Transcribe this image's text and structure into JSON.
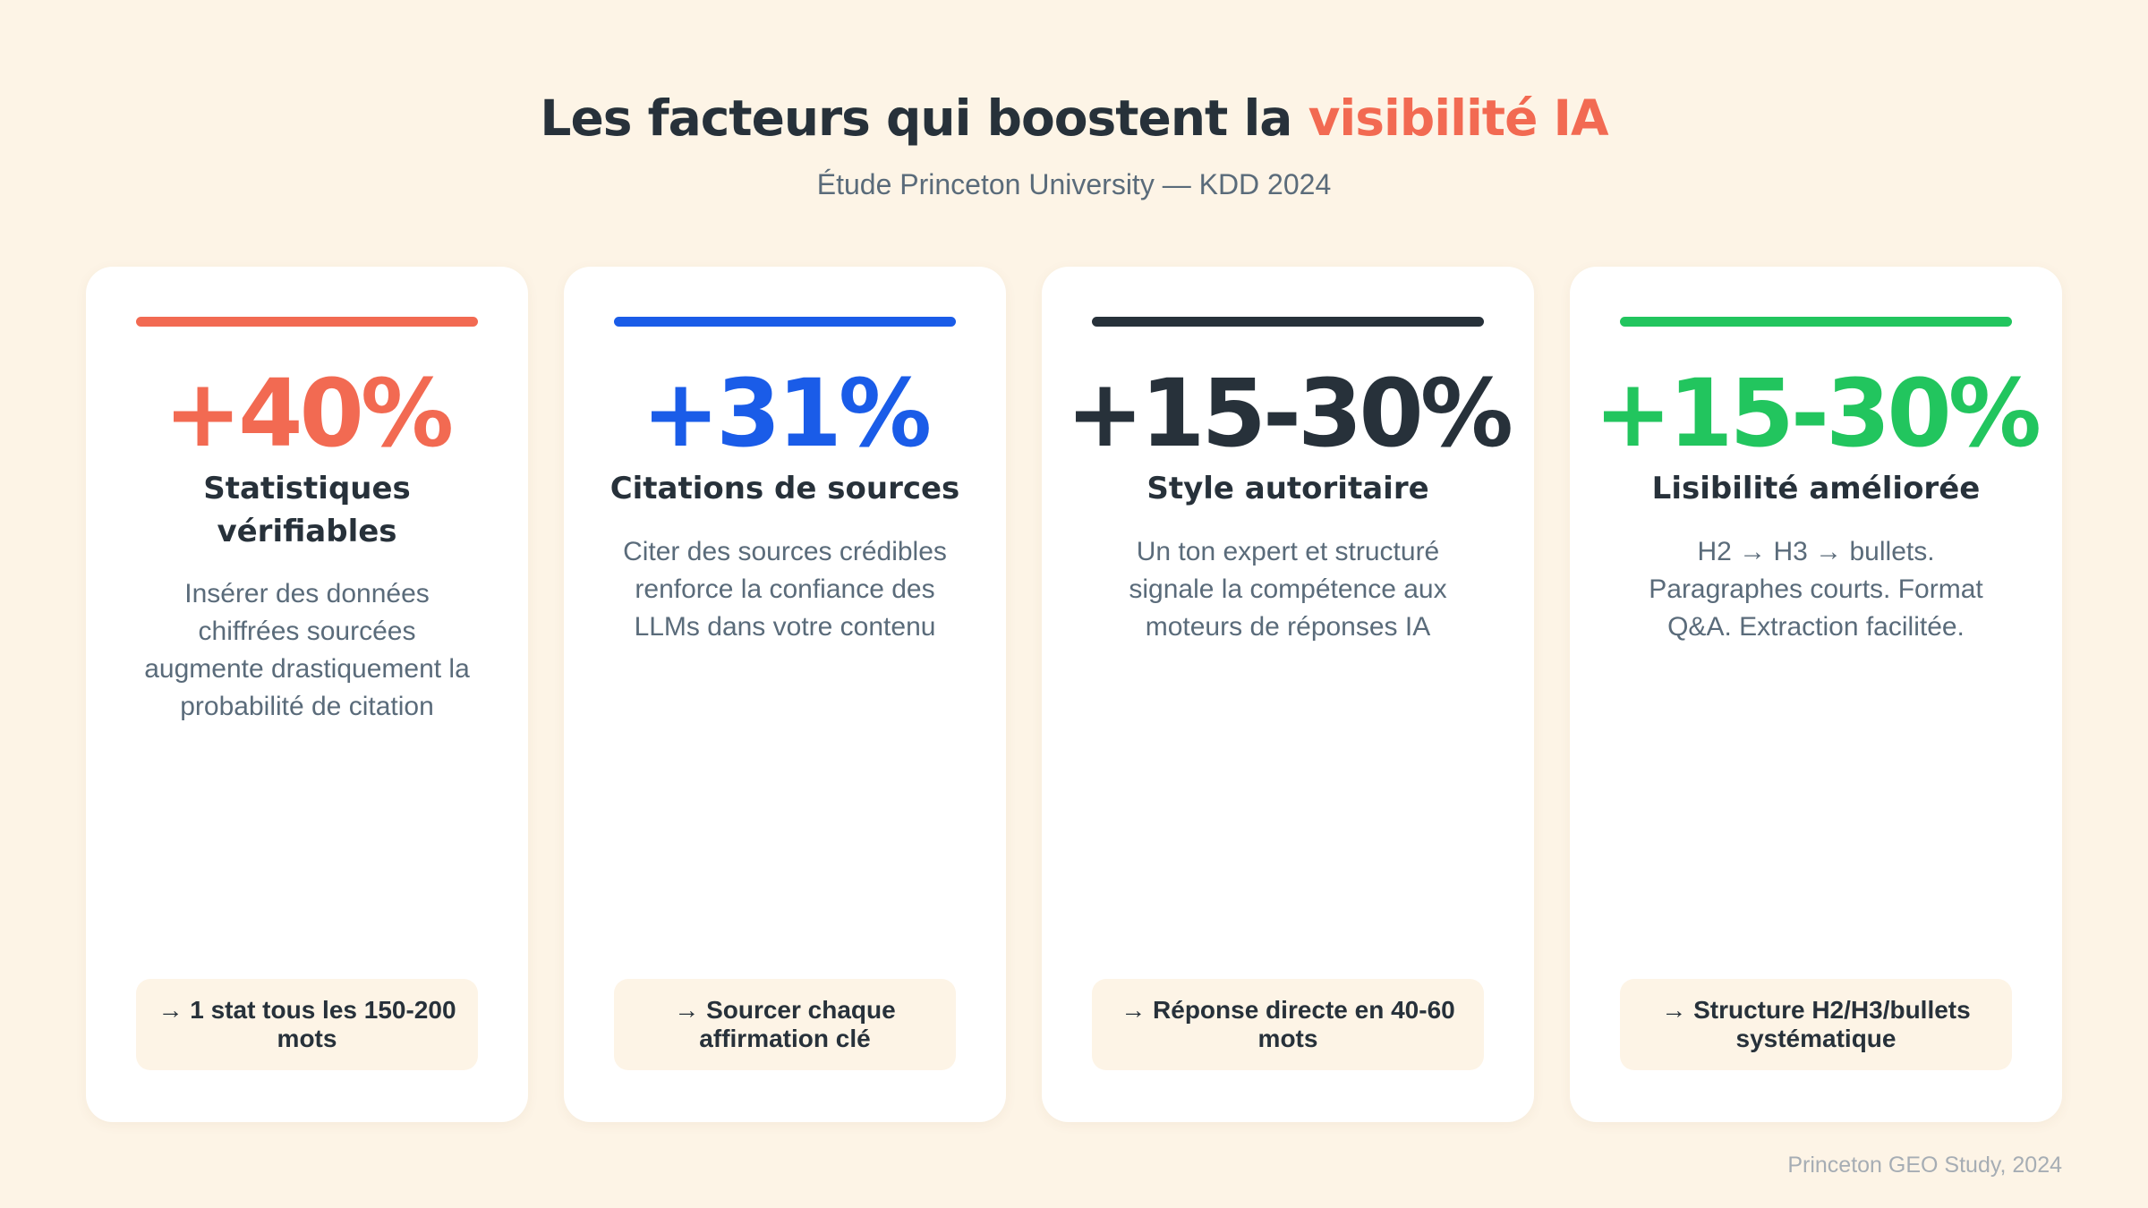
{
  "header": {
    "title_main": "Les facteurs qui boostent la ",
    "title_accent": "visibilité IA",
    "subtitle": "Étude Princeton University — KDD 2024"
  },
  "cards": [
    {
      "value": "+40%",
      "title": "Statistiques vérifiables",
      "description": "Insérer des données chiffrées sourcées augmente drastiquement la probabilité de citation",
      "footer": "→ 1 stat tous les 150-200 mots",
      "accent_color": "#f26a52"
    },
    {
      "value": "+31%",
      "title": "Citations de sources",
      "description": "Citer des sources crédibles renforce la confiance des LLMs dans votre contenu",
      "footer": "→ Sourcer chaque affirmation clé",
      "accent_color": "#1a5ce8"
    },
    {
      "value": "+15-30%",
      "title": "Style autoritaire",
      "description": "Un ton expert et structuré signale la compétence aux moteurs de réponses IA",
      "footer": "→ Réponse directe en 40-60 mots",
      "accent_color": "#27313a"
    },
    {
      "value": "+15-30%",
      "title": "Lisibilité améliorée",
      "description": "H2 → H3 → bullets. Paragraphes courts. Format Q&A. Extraction facilitée.",
      "footer": "→ Structure H2/H3/bullets systématique",
      "accent_color": "#22c55e"
    }
  ],
  "footer_note": "Princeton GEO Study, 2024",
  "colors": {
    "background": "#fdf4e6",
    "card_background": "#ffffff",
    "title_text": "#27313a",
    "muted_text": "#5a6b7a",
    "accent": "#f26a52"
  }
}
